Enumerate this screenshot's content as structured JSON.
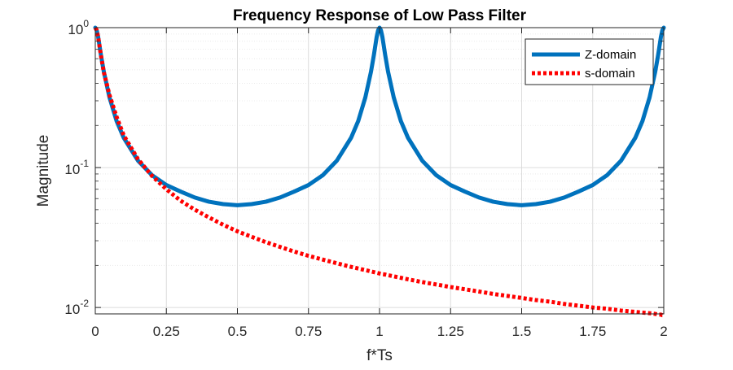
{
  "chart_data": {
    "type": "line",
    "title": "Frequency Response of Low Pass Filter",
    "xlabel": "f*Ts",
    "ylabel": "Magnitude",
    "xlim": [
      0,
      2
    ],
    "ylim": [
      0.009,
      1
    ],
    "yscale": "log",
    "grid": true,
    "minor_grid": true,
    "legend_position": "top-right",
    "x_ticks": [
      {
        "value": 0,
        "label": "0"
      },
      {
        "value": 0.25,
        "label": "0.25"
      },
      {
        "value": 0.5,
        "label": "0.5"
      },
      {
        "value": 0.75,
        "label": "0.75"
      },
      {
        "value": 1,
        "label": "1"
      },
      {
        "value": 1.25,
        "label": "1.25"
      },
      {
        "value": 1.5,
        "label": "1.5"
      },
      {
        "value": 1.75,
        "label": "1.75"
      },
      {
        "value": 2,
        "label": "2"
      }
    ],
    "y_ticks": [
      {
        "value": 1,
        "base": "10",
        "exp": "0"
      },
      {
        "value": 0.1,
        "base": "10",
        "exp": "-1"
      },
      {
        "value": 0.01,
        "base": "10",
        "exp": "-2"
      }
    ],
    "x": [
      0,
      0.005,
      0.01,
      0.02,
      0.03,
      0.05,
      0.075,
      0.1,
      0.15,
      0.2,
      0.25,
      0.3,
      0.35,
      0.4,
      0.45,
      0.5,
      0.55,
      0.6,
      0.65,
      0.7,
      0.75,
      0.8,
      0.85,
      0.9,
      0.925,
      0.95,
      0.97,
      0.98,
      0.99,
      0.995,
      1,
      1.005,
      1.01,
      1.02,
      1.03,
      1.05,
      1.075,
      1.1,
      1.15,
      1.2,
      1.25,
      1.3,
      1.35,
      1.4,
      1.45,
      1.5,
      1.55,
      1.6,
      1.65,
      1.7,
      1.75,
      1.8,
      1.85,
      1.9,
      1.925,
      1.95,
      1.97,
      1.98,
      1.99,
      1.995,
      2
    ],
    "series": [
      {
        "name": "Z-domain",
        "color": "#0072BD",
        "style": "solid",
        "values": [
          1,
          0.9569,
          0.8599,
          0.6354,
          0.4847,
          0.317,
          0.215,
          0.1634,
          0.1122,
          0.088,
          0.075,
          0.0674,
          0.0611,
          0.057,
          0.0548,
          0.0538,
          0.0548,
          0.057,
          0.0611,
          0.0674,
          0.075,
          0.088,
          0.1122,
          0.1634,
          0.215,
          0.317,
          0.4847,
          0.6354,
          0.8599,
          0.9569,
          1,
          0.9569,
          0.8599,
          0.6354,
          0.4847,
          0.317,
          0.215,
          0.1634,
          0.1122,
          0.088,
          0.075,
          0.0674,
          0.0611,
          0.057,
          0.0548,
          0.0538,
          0.0548,
          0.057,
          0.0611,
          0.0674,
          0.075,
          0.088,
          0.1122,
          0.1634,
          0.215,
          0.317,
          0.4847,
          0.6354,
          0.8599,
          0.9569,
          1
        ]
      },
      {
        "name": "s-domain",
        "color": "#FF0000",
        "style": "dotted",
        "values": [
          1,
          0.9569,
          0.8599,
          0.63,
          0.48,
          0.33,
          0.23,
          0.17,
          0.115,
          0.087,
          0.07,
          0.058,
          0.05,
          0.044,
          0.039,
          0.035,
          0.032,
          0.0293,
          0.0271,
          0.0251,
          0.0234,
          0.022,
          0.0207,
          0.0195,
          0.019,
          0.0185,
          0.0181,
          0.0179,
          0.0177,
          0.0176,
          0.0175,
          0.0174,
          0.0173,
          0.0172,
          0.017,
          0.0167,
          0.0163,
          0.0159,
          0.0152,
          0.0146,
          0.014,
          0.0135,
          0.013,
          0.0125,
          0.0121,
          0.0117,
          0.0113,
          0.011,
          0.0106,
          0.0103,
          0.01,
          0.0098,
          0.0095,
          0.0093,
          0.0092,
          0.0091,
          0.009,
          0.0089,
          0.0089,
          0.0088,
          0.0088
        ]
      }
    ]
  }
}
